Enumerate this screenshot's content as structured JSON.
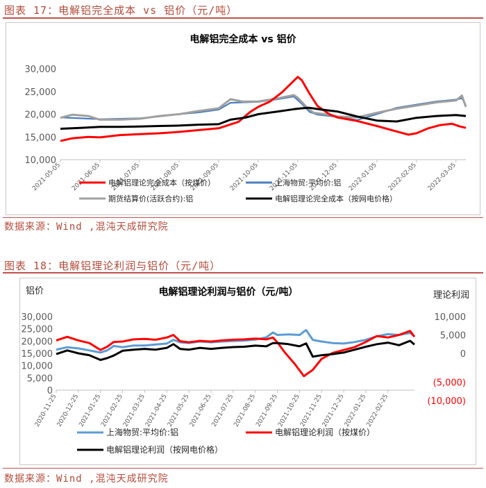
{
  "figure1": {
    "caption": "图表 17：电解铝完全成本 vs 铝价（元/吨）",
    "source": "数据来源：Wind ,混沌天成研究院"
  },
  "figure2": {
    "caption": "图表 18：电解铝理论利润与铝价（元/吨）",
    "source": "数据来源：Wind ,混沌天成研究院"
  },
  "chart_data": [
    {
      "type": "line",
      "title": "电解铝完全成本 vs 铝价",
      "ylim": [
        10000,
        30000
      ],
      "yticks": [
        10000,
        15000,
        20000,
        25000,
        30000
      ],
      "ytick_labels": [
        "10,000",
        "15,000",
        "20,000",
        "25,000",
        "30,000"
      ],
      "categories": [
        "2021-05-05",
        "2021-06-05",
        "2021-07-05",
        "2021-08-05",
        "2021-09-05",
        "2021-10-05",
        "2021-11-05",
        "2021-12-05",
        "2022-01-05",
        "2022-02-05",
        "2022-03-05"
      ],
      "x_range": [
        0,
        10.25
      ],
      "series": [
        {
          "name": "电解铝理论完全成本（按煤价）",
          "color": "#ff0000",
          "points": [
            [
              0,
              14100
            ],
            [
              0.3,
              14700
            ],
            [
              0.7,
              15000
            ],
            [
              1,
              14900
            ],
            [
              1.5,
              15400
            ],
            [
              2,
              15600
            ],
            [
              2.5,
              15800
            ],
            [
              3,
              16100
            ],
            [
              3.5,
              16500
            ],
            [
              4,
              16900
            ],
            [
              4.5,
              18300
            ],
            [
              4.8,
              20500
            ],
            [
              5,
              21600
            ],
            [
              5.3,
              22800
            ],
            [
              5.6,
              24800
            ],
            [
              5.8,
              26500
            ],
            [
              6.0,
              28200
            ],
            [
              6.1,
              27500
            ],
            [
              6.3,
              24500
            ],
            [
              6.5,
              21800
            ],
            [
              6.8,
              20000
            ],
            [
              7,
              19300
            ],
            [
              7.5,
              18500
            ],
            [
              8,
              17400
            ],
            [
              8.5,
              16200
            ],
            [
              8.8,
              15500
            ],
            [
              9,
              15800
            ],
            [
              9.3,
              16900
            ],
            [
              9.6,
              17600
            ],
            [
              9.9,
              17900
            ],
            [
              10.1,
              17300
            ],
            [
              10.25,
              17000
            ]
          ]
        },
        {
          "name": "上海物贸:平均价:铝",
          "color": "#4a7ebb",
          "points": [
            [
              0,
              19300
            ],
            [
              0.5,
              19100
            ],
            [
              1,
              18900
            ],
            [
              1.5,
              19000
            ],
            [
              2,
              19100
            ],
            [
              2.5,
              19500
            ],
            [
              3,
              20000
            ],
            [
              3.5,
              20400
            ],
            [
              4,
              21000
            ],
            [
              4.3,
              22500
            ],
            [
              4.6,
              22600
            ],
            [
              5,
              22700
            ],
            [
              5.5,
              23300
            ],
            [
              5.9,
              23900
            ],
            [
              6.1,
              22300
            ],
            [
              6.3,
              20500
            ],
            [
              6.5,
              19900
            ],
            [
              7,
              19400
            ],
            [
              7.5,
              18700
            ],
            [
              8,
              20000
            ],
            [
              8.5,
              21400
            ],
            [
              9,
              22100
            ],
            [
              9.5,
              22800
            ],
            [
              10,
              23200
            ],
            [
              10.15,
              23500
            ],
            [
              10.25,
              22000
            ]
          ]
        },
        {
          "name": "期货结算价(活跃合约):铝",
          "color": "#a0a0a0",
          "points": [
            [
              0,
              19200
            ],
            [
              0.3,
              19900
            ],
            [
              0.7,
              19600
            ],
            [
              1,
              18800
            ],
            [
              1.5,
              18800
            ],
            [
              2,
              19000
            ],
            [
              2.5,
              19600
            ],
            [
              3,
              20000
            ],
            [
              3.5,
              20700
            ],
            [
              4,
              21300
            ],
            [
              4.3,
              23300
            ],
            [
              4.6,
              22800
            ],
            [
              5,
              22800
            ],
            [
              5.5,
              23500
            ],
            [
              5.9,
              24200
            ],
            [
              6.0,
              23600
            ],
            [
              6.2,
              21800
            ],
            [
              6.4,
              20300
            ],
            [
              6.8,
              19900
            ],
            [
              7,
              19500
            ],
            [
              7.5,
              19300
            ],
            [
              8,
              20300
            ],
            [
              8.5,
              21200
            ],
            [
              9,
              21900
            ],
            [
              9.5,
              22600
            ],
            [
              10,
              23000
            ],
            [
              10.15,
              24100
            ],
            [
              10.25,
              21600
            ]
          ]
        },
        {
          "name": "电解铝理论完全成本（按网电价格）",
          "color": "#000000",
          "points": [
            [
              0,
              16800
            ],
            [
              0.5,
              17000
            ],
            [
              1,
              17200
            ],
            [
              1.5,
              17200
            ],
            [
              2,
              17300
            ],
            [
              2.5,
              17400
            ],
            [
              3,
              17500
            ],
            [
              3.5,
              17700
            ],
            [
              4,
              17800
            ],
            [
              4.3,
              18800
            ],
            [
              4.7,
              19300
            ],
            [
              5,
              20000
            ],
            [
              5.5,
              20600
            ],
            [
              5.9,
              21100
            ],
            [
              6.1,
              21300
            ],
            [
              6.3,
              21400
            ],
            [
              6.6,
              21000
            ],
            [
              7,
              20600
            ],
            [
              7.5,
              19500
            ],
            [
              8,
              18600
            ],
            [
              8.5,
              18400
            ],
            [
              9,
              19200
            ],
            [
              9.5,
              19600
            ],
            [
              10,
              19800
            ],
            [
              10.25,
              19600
            ]
          ]
        }
      ]
    },
    {
      "type": "line",
      "title": "电解铝理论利润与铝价（元/吨）",
      "left_axis_label": "铝价",
      "right_axis_label": "理论利润",
      "ylim_left": [
        0,
        30000
      ],
      "yticks_left": [
        0,
        5000,
        10000,
        15000,
        20000,
        25000,
        30000
      ],
      "ytick_labels_left": [
        "0",
        "5,000",
        "10,000",
        "15,000",
        "20,000",
        "25,000",
        "30,000"
      ],
      "ylim_right": [
        -10000,
        10000
      ],
      "yticks_right": [
        -10000,
        -5000,
        0,
        5000,
        10000
      ],
      "ytick_labels_right": [
        "(10,000)",
        "(5,000)",
        "0",
        "5,000",
        "10,000"
      ],
      "categories": [
        "2020-11-25",
        "2020-12-25",
        "2021-01-25",
        "2021-02-25",
        "2021-03-25",
        "2021-04-25",
        "2021-05-25",
        "2021-06-25",
        "2021-07-25",
        "2021-08-25",
        "2021-09-25",
        "2021-10-25",
        "2021-11-25",
        "2021-12-25",
        "2022-01-25",
        "2022-02-25"
      ],
      "x_range": [
        0,
        16.2
      ],
      "series": [
        {
          "name": "上海物贸:平均价:铝",
          "axis": "left",
          "color": "#5b9bd5",
          "points": [
            [
              0,
              16500
            ],
            [
              0.5,
              17500
            ],
            [
              1,
              17000
            ],
            [
              1.5,
              16200
            ],
            [
              2,
              15300
            ],
            [
              2.3,
              16200
            ],
            [
              2.6,
              18000
            ],
            [
              3,
              17500
            ],
            [
              3.5,
              18200
            ],
            [
              4,
              18200
            ],
            [
              4.5,
              18600
            ],
            [
              5,
              19000
            ],
            [
              5.3,
              20500
            ],
            [
              5.6,
              19500
            ],
            [
              6,
              19200
            ],
            [
              6.5,
              19800
            ],
            [
              7,
              19500
            ],
            [
              7.5,
              19800
            ],
            [
              8,
              20000
            ],
            [
              8.5,
              20200
            ],
            [
              9,
              20600
            ],
            [
              9.5,
              21500
            ],
            [
              9.8,
              23500
            ],
            [
              10,
              22500
            ],
            [
              10.5,
              22700
            ],
            [
              11,
              22500
            ],
            [
              11.3,
              24500
            ],
            [
              11.6,
              20500
            ],
            [
              12,
              19800
            ],
            [
              12.5,
              19200
            ],
            [
              13,
              19000
            ],
            [
              13.5,
              19600
            ],
            [
              14,
              20500
            ],
            [
              14.5,
              22000
            ],
            [
              15,
              22800
            ],
            [
              15.5,
              22500
            ],
            [
              16,
              23300
            ],
            [
              16.2,
              22000
            ]
          ]
        },
        {
          "name": "电解铝理论利润（按煤价）",
          "axis": "right",
          "color": "#ff0000",
          "points": [
            [
              0,
              3500
            ],
            [
              0.5,
              4500
            ],
            [
              1,
              3500
            ],
            [
              1.5,
              2800
            ],
            [
              2,
              900
            ],
            [
              2.3,
              1800
            ],
            [
              2.6,
              3100
            ],
            [
              3,
              3200
            ],
            [
              3.5,
              3800
            ],
            [
              4,
              3900
            ],
            [
              4.5,
              3700
            ],
            [
              5,
              4300
            ],
            [
              5.3,
              5000
            ],
            [
              5.6,
              3300
            ],
            [
              6,
              3000
            ],
            [
              6.5,
              3400
            ],
            [
              7,
              3200
            ],
            [
              7.5,
              3500
            ],
            [
              8,
              3700
            ],
            [
              8.5,
              3800
            ],
            [
              9,
              4000
            ],
            [
              9.5,
              3800
            ],
            [
              9.8,
              4300
            ],
            [
              10,
              3000
            ],
            [
              10.3,
              500
            ],
            [
              10.8,
              -3000
            ],
            [
              11.2,
              -6200
            ],
            [
              11.6,
              -4500
            ],
            [
              12,
              -1500
            ],
            [
              12.5,
              100
            ],
            [
              13,
              900
            ],
            [
              13.5,
              1700
            ],
            [
              14,
              3100
            ],
            [
              14.5,
              4700
            ],
            [
              15,
              4300
            ],
            [
              15.5,
              5000
            ],
            [
              16,
              6100
            ],
            [
              16.2,
              4500
            ]
          ]
        },
        {
          "name": "电解铝理论利润（按网电价格）",
          "axis": "right",
          "color": "#000000",
          "points": [
            [
              0,
              -200
            ],
            [
              0.5,
              800
            ],
            [
              1,
              0
            ],
            [
              1.5,
              -500
            ],
            [
              2,
              -1800
            ],
            [
              2.3,
              -1300
            ],
            [
              2.6,
              -600
            ],
            [
              3,
              700
            ],
            [
              3.5,
              1000
            ],
            [
              4,
              1200
            ],
            [
              4.5,
              1000
            ],
            [
              5,
              1500
            ],
            [
              5.3,
              2500
            ],
            [
              5.6,
              1200
            ],
            [
              6,
              1000
            ],
            [
              6.5,
              1500
            ],
            [
              7,
              1200
            ],
            [
              7.5,
              1500
            ],
            [
              8,
              1700
            ],
            [
              8.5,
              1800
            ],
            [
              9,
              2100
            ],
            [
              9.5,
              1900
            ],
            [
              9.8,
              2800
            ],
            [
              10,
              2800
            ],
            [
              10.5,
              2500
            ],
            [
              11,
              1900
            ],
            [
              11.3,
              2700
            ],
            [
              11.6,
              -900
            ],
            [
              12,
              -500
            ],
            [
              12.5,
              -200
            ],
            [
              13,
              200
            ],
            [
              13.5,
              1000
            ],
            [
              14,
              1800
            ],
            [
              14.5,
              2500
            ],
            [
              15,
              2900
            ],
            [
              15.5,
              2200
            ],
            [
              16,
              3400
            ],
            [
              16.2,
              2400
            ]
          ]
        }
      ]
    }
  ]
}
